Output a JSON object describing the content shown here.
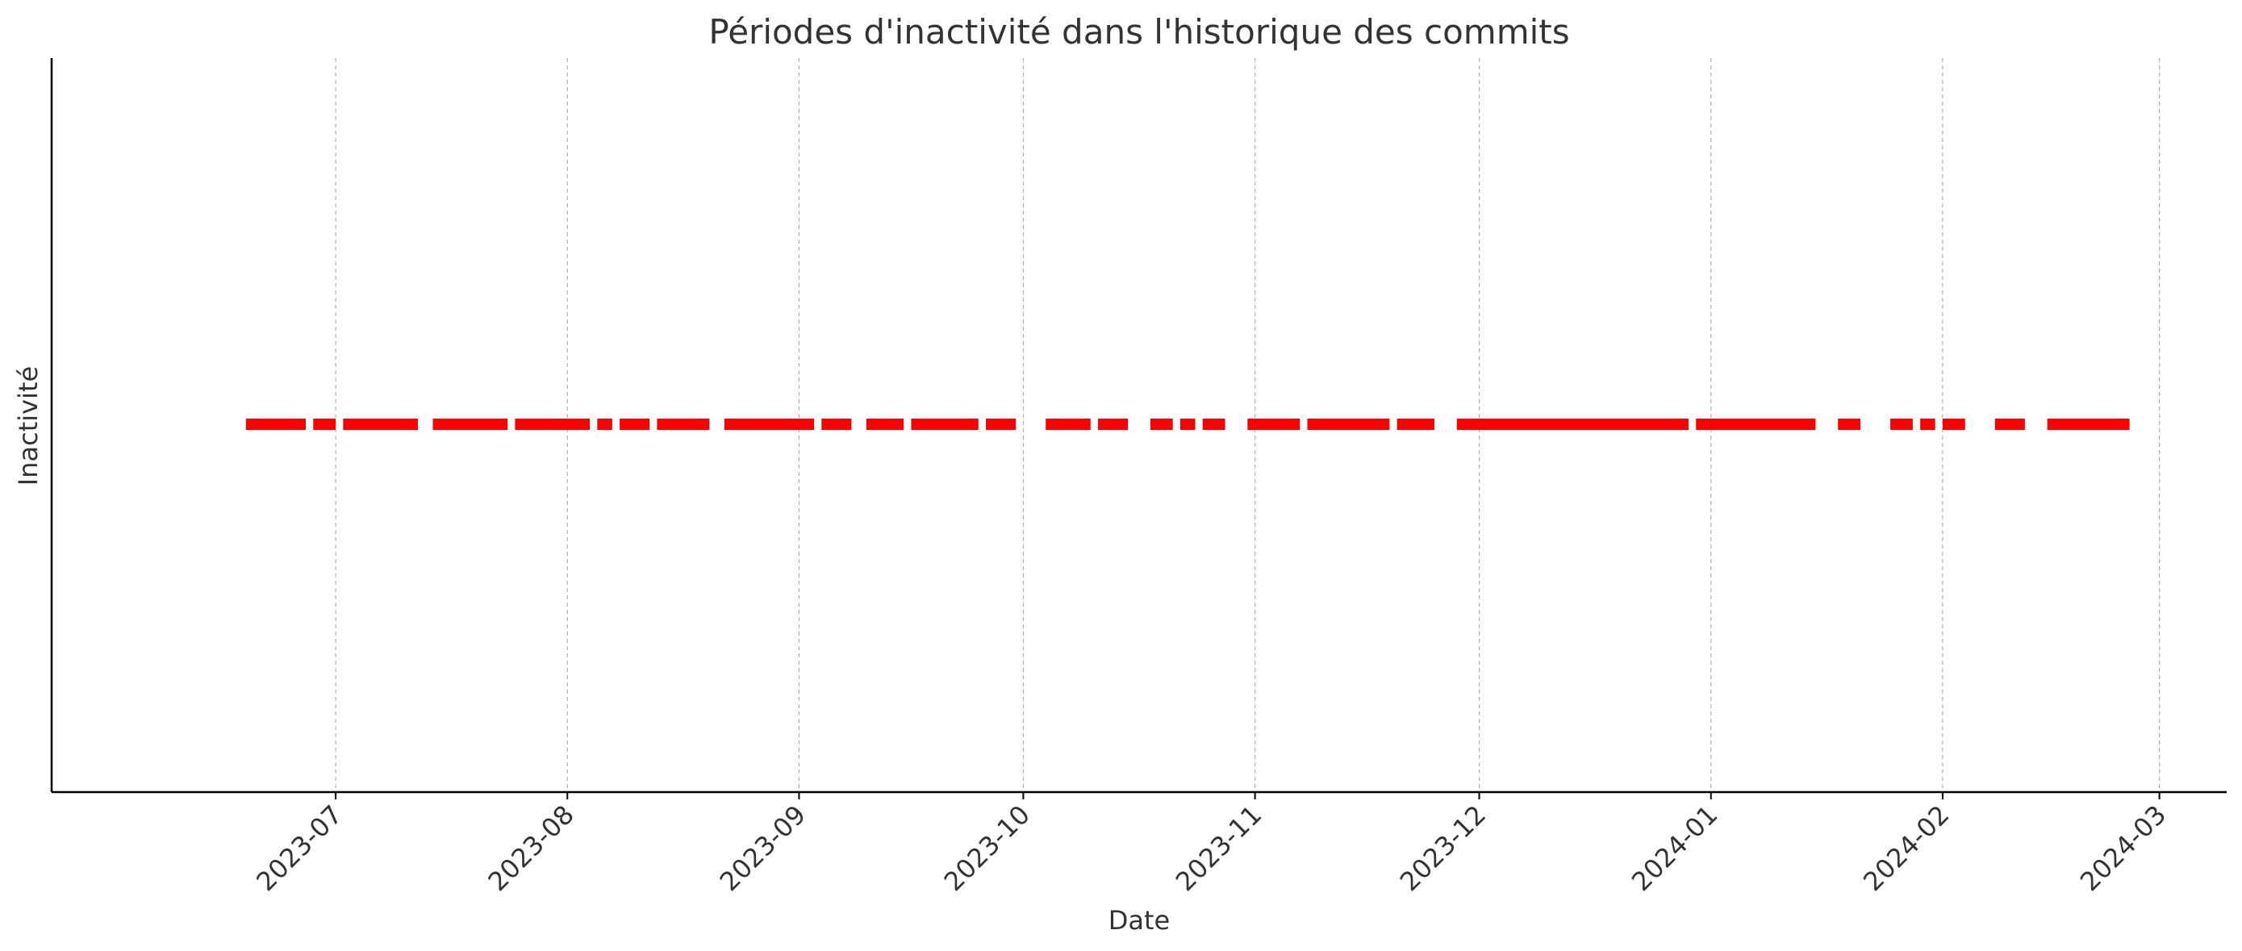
{
  "chart_data": {
    "type": "timeline",
    "title": "Périodes d'inactivité dans l'historique des commits",
    "xlabel": "Date",
    "ylabel": "Inactivité",
    "x_ticks": [
      "2023-07",
      "2023-08",
      "2023-09",
      "2023-10",
      "2023-11",
      "2023-12",
      "2024-01",
      "2024-02",
      "2024-03"
    ],
    "xlim": [
      "2023-05-24",
      "2024-03-10"
    ],
    "grid": "x-axis, dashed",
    "color": "#ff0000",
    "periods": [
      {
        "start": "2023-06-19",
        "end": "2023-06-27"
      },
      {
        "start": "2023-06-28",
        "end": "2023-07-01"
      },
      {
        "start": "2023-07-02",
        "end": "2023-07-12"
      },
      {
        "start": "2023-07-14",
        "end": "2023-07-24"
      },
      {
        "start": "2023-07-25",
        "end": "2023-08-04"
      },
      {
        "start": "2023-08-05",
        "end": "2023-08-07"
      },
      {
        "start": "2023-08-08",
        "end": "2023-08-12"
      },
      {
        "start": "2023-08-13",
        "end": "2023-08-20"
      },
      {
        "start": "2023-08-22",
        "end": "2023-09-03"
      },
      {
        "start": "2023-09-04",
        "end": "2023-09-08"
      },
      {
        "start": "2023-09-10",
        "end": "2023-09-15"
      },
      {
        "start": "2023-09-16",
        "end": "2023-09-25"
      },
      {
        "start": "2023-09-26",
        "end": "2023-09-30"
      },
      {
        "start": "2023-10-04",
        "end": "2023-10-10"
      },
      {
        "start": "2023-10-11",
        "end": "2023-10-15"
      },
      {
        "start": "2023-10-18",
        "end": "2023-10-21"
      },
      {
        "start": "2023-10-22",
        "end": "2023-10-24"
      },
      {
        "start": "2023-10-25",
        "end": "2023-10-28"
      },
      {
        "start": "2023-10-31",
        "end": "2023-11-07"
      },
      {
        "start": "2023-11-08",
        "end": "2023-11-19"
      },
      {
        "start": "2023-11-20",
        "end": "2023-11-25"
      },
      {
        "start": "2023-11-28",
        "end": "2023-12-29"
      },
      {
        "start": "2023-12-30",
        "end": "2024-01-15"
      },
      {
        "start": "2024-01-18",
        "end": "2024-01-21"
      },
      {
        "start": "2024-01-25",
        "end": "2024-01-28"
      },
      {
        "start": "2024-01-29",
        "end": "2024-01-31"
      },
      {
        "start": "2024-02-01",
        "end": "2024-02-04"
      },
      {
        "start": "2024-02-08",
        "end": "2024-02-12"
      },
      {
        "start": "2024-02-15",
        "end": "2024-02-26"
      }
    ]
  }
}
